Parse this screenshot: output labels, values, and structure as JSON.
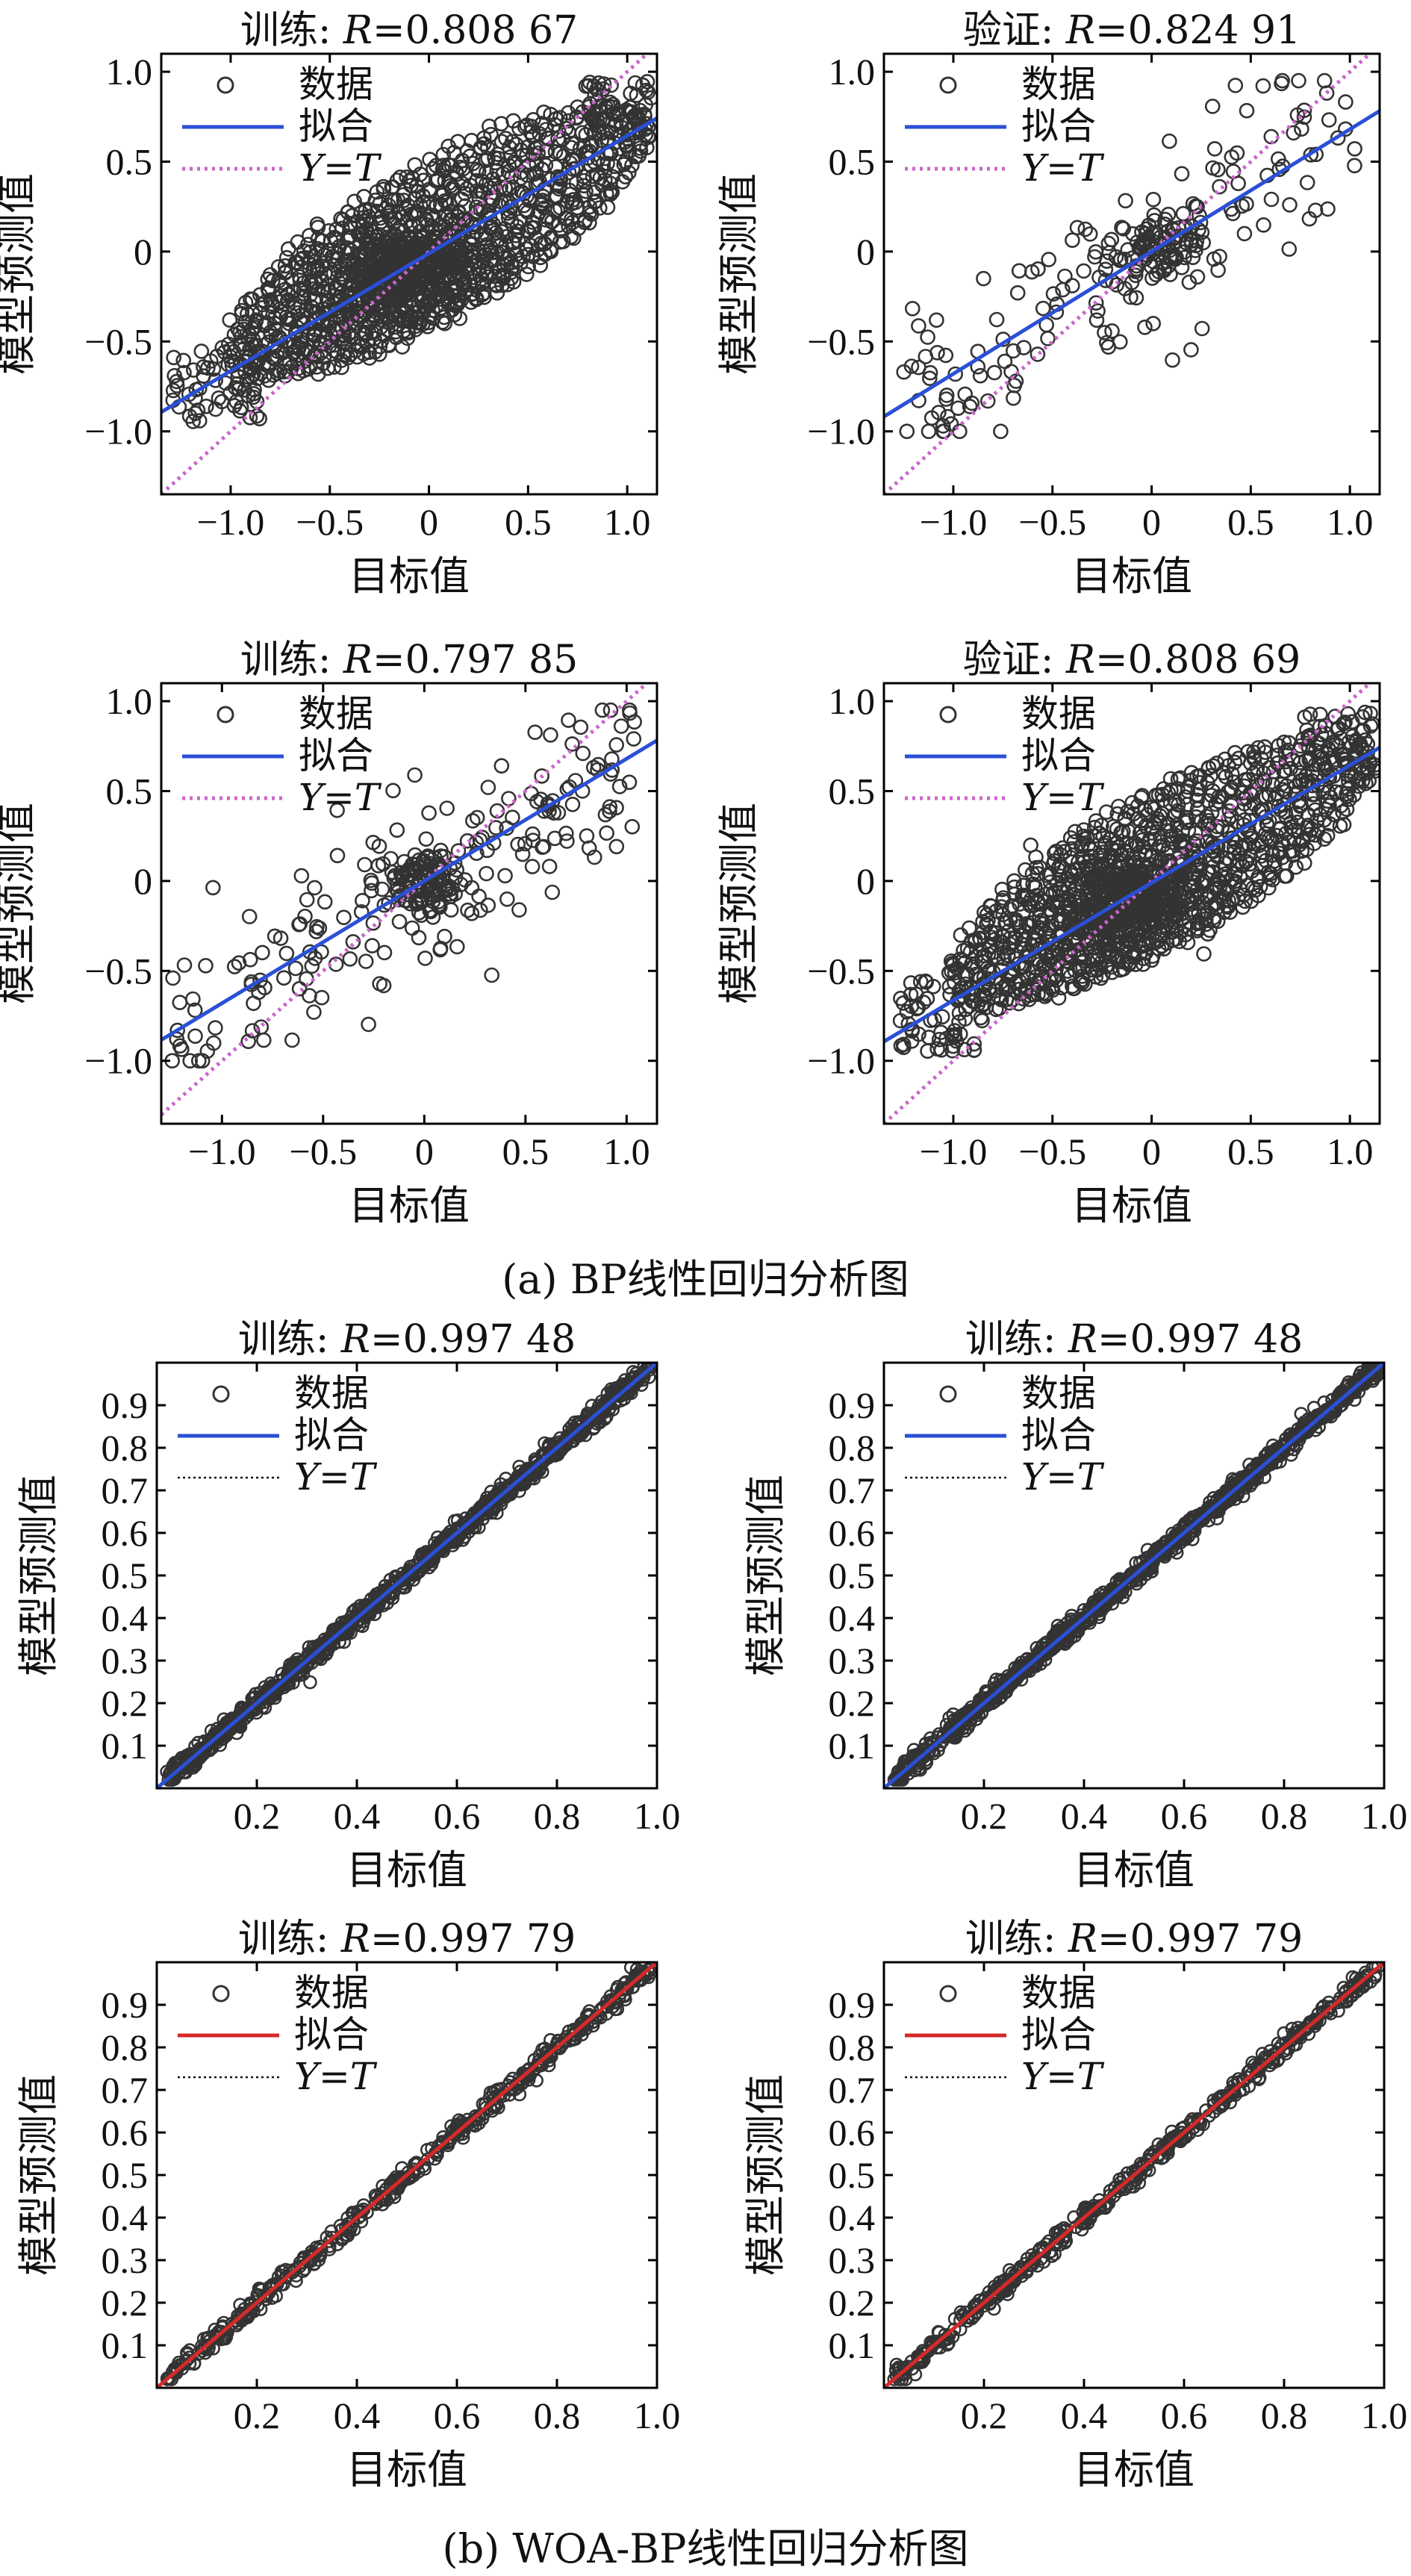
{
  "figure": {
    "caption_a": "(a) BP线性回归分析图",
    "caption_b": "(b) WOA-BP线性回归分析图"
  },
  "chart_data": [
    {
      "type": "scatter",
      "id": "a-train-1",
      "title": "训练: R=0.808 67",
      "title_prefix": "训练: ",
      "title_r": "R",
      "title_value": "=0.808 67",
      "xlabel": "目标值",
      "ylabel": "模型预测值",
      "xlim": [
        -1.35,
        1.15
      ],
      "ylim": [
        -1.35,
        1.1
      ],
      "xticks": [
        -1.0,
        -0.5,
        0,
        0.5,
        1.0
      ],
      "xtick_labels": [
        "−1.0",
        "−0.5",
        "0",
        "0.5",
        "1.0"
      ],
      "yticks": [
        1.0,
        0.5,
        0,
        -0.5,
        -1.0
      ],
      "ytick_labels": [
        "1.0",
        "0.5",
        "0",
        "−0.5",
        "−1.0"
      ],
      "legend": [
        "数据",
        "拟合",
        "Y=T"
      ],
      "legend_position": "top-left",
      "fit_color": "#2b4fd6",
      "identity_color": "#cc66cc",
      "identity_style": "dotted",
      "fit_line": {
        "slope": 0.654,
        "intercept": -0.01
      },
      "data_pattern": "dense-ellipse-rings",
      "approx_points": 1000
    },
    {
      "type": "scatter",
      "id": "a-valid-1",
      "title": "验证: R=0.824 91",
      "title_prefix": "验证: ",
      "title_r": "R",
      "title_value": "=0.824 91",
      "xlabel": "目标值",
      "ylabel": "模型预测值",
      "xlim": [
        -1.35,
        1.15
      ],
      "ylim": [
        -1.35,
        1.1
      ],
      "xticks": [
        -1.0,
        -0.5,
        0,
        0.5,
        1.0
      ],
      "xtick_labels": [
        "−1.0",
        "−0.5",
        "0",
        "0.5",
        "1.0"
      ],
      "yticks": [
        1.0,
        0.5,
        0,
        -0.5,
        -1.0
      ],
      "ytick_labels": [
        "1.0",
        "0.5",
        "0",
        "−0.5",
        "−1.0"
      ],
      "legend": [
        "数据",
        "拟合",
        "Y=T"
      ],
      "legend_position": "top-left",
      "fit_color": "#2b4fd6",
      "identity_color": "#cc66cc",
      "identity_style": "dotted",
      "fit_line": {
        "slope": 0.68,
        "intercept": 0.0
      },
      "data_pattern": "sparse-scatter",
      "approx_points": 250
    },
    {
      "type": "scatter",
      "id": "a-train-2",
      "title": "训练: R=0.797 85",
      "title_prefix": "训练: ",
      "title_r": "R",
      "title_value": "=0.797 85",
      "xlabel": "目标值",
      "ylabel": "模型预测值",
      "xlim": [
        -1.3,
        1.15
      ],
      "ylim": [
        -1.35,
        1.1
      ],
      "xticks": [
        -1.0,
        -0.5,
        0,
        0.5,
        1.0
      ],
      "xtick_labels": [
        "−1.0",
        "−0.5",
        "0",
        "0.5",
        "1.0"
      ],
      "yticks": [
        1.0,
        0.5,
        0,
        -0.5,
        -1.0
      ],
      "ytick_labels": [
        "1.0",
        "0.5",
        "0",
        "−0.5",
        "−1.0"
      ],
      "legend": [
        "数据",
        "拟合",
        "Y=T"
      ],
      "legend_position": "top-left",
      "fit_color": "#2b4fd6",
      "identity_color": "#cc66cc",
      "identity_style": "dotted",
      "fit_line": {
        "slope": 0.68,
        "intercept": 0.0
      },
      "data_pattern": "sparse-scatter",
      "approx_points": 300
    },
    {
      "type": "scatter",
      "id": "a-valid-2",
      "title": "验证: R=0.808 69",
      "title_prefix": "验证: ",
      "title_r": "R",
      "title_value": "=0.808 69",
      "xlabel": "目标值",
      "ylabel": "模型预测值",
      "xlim": [
        -1.35,
        1.15
      ],
      "ylim": [
        -1.35,
        1.1
      ],
      "xticks": [
        -1.0,
        -0.5,
        0,
        0.5,
        1.0
      ],
      "xtick_labels": [
        "−1.0",
        "−0.5",
        "0",
        "0.5",
        "1.0"
      ],
      "yticks": [
        1.0,
        0.5,
        0,
        -0.5,
        -1.0
      ],
      "ytick_labels": [
        "1.0",
        "0.5",
        "0",
        "−0.5",
        "−1.0"
      ],
      "legend": [
        "数据",
        "拟合",
        "Y=T"
      ],
      "legend_position": "top-left",
      "fit_color": "#2b4fd6",
      "identity_color": "#cc66cc",
      "identity_style": "dotted",
      "fit_line": {
        "slope": 0.654,
        "intercept": -0.01
      },
      "data_pattern": "dense-ellipse-rings",
      "approx_points": 1100
    },
    {
      "type": "scatter",
      "id": "b-train-1",
      "title": "训练: R=0.997 48",
      "title_prefix": "训练: ",
      "title_r": "R",
      "title_value": "=0.997 48",
      "xlabel": "目标值",
      "ylabel": "模型预测值",
      "xlim": [
        0,
        1.0
      ],
      "ylim": [
        0,
        1.0
      ],
      "xticks": [
        0.2,
        0.4,
        0.6,
        0.8,
        1.0
      ],
      "xtick_labels": [
        "0.2",
        "0.4",
        "0.6",
        "0.8",
        "1.0"
      ],
      "yticks": [
        0.9,
        0.8,
        0.7,
        0.6,
        0.5,
        0.4,
        0.3,
        0.2,
        0.1
      ],
      "ytick_labels": [
        "0.9",
        "0.8",
        "0.7",
        "0.6",
        "0.5",
        "0.4",
        "0.3",
        "0.2",
        "0.1"
      ],
      "legend": [
        "数据",
        "拟合",
        "Y=T"
      ],
      "legend_position": "top-left",
      "fit_color": "#2b4fd6",
      "identity_color": "#111111",
      "identity_style": "dotted",
      "fit_line": {
        "slope": 1.0,
        "intercept": 0.0
      },
      "data_pattern": "tight-diagonal",
      "approx_points": 900
    },
    {
      "type": "scatter",
      "id": "b-train-2",
      "title": "训练: R=0.997 48",
      "title_prefix": "训练: ",
      "title_r": "R",
      "title_value": "=0.997 48",
      "xlabel": "目标值",
      "ylabel": "模型预测值",
      "xlim": [
        0,
        1.0
      ],
      "ylim": [
        0,
        1.0
      ],
      "xticks": [
        0.2,
        0.4,
        0.6,
        0.8,
        1.0
      ],
      "xtick_labels": [
        "0.2",
        "0.4",
        "0.6",
        "0.8",
        "1.0"
      ],
      "yticks": [
        0.9,
        0.8,
        0.7,
        0.6,
        0.5,
        0.4,
        0.3,
        0.2,
        0.1
      ],
      "ytick_labels": [
        "0.9",
        "0.8",
        "0.7",
        "0.6",
        "0.5",
        "0.4",
        "0.3",
        "0.2",
        "0.1"
      ],
      "legend": [
        "数据",
        "拟合",
        "Y=T"
      ],
      "legend_position": "top-left",
      "fit_color": "#2b4fd6",
      "identity_color": "#111111",
      "identity_style": "dotted",
      "fit_line": {
        "slope": 1.0,
        "intercept": 0.0
      },
      "data_pattern": "tight-diagonal",
      "approx_points": 900
    },
    {
      "type": "scatter",
      "id": "b-train-3",
      "title": "训练: R=0.997 79",
      "title_prefix": "训练: ",
      "title_r": "R",
      "title_value": "=0.997 79",
      "xlabel": "目标值",
      "ylabel": "模型预测值",
      "xlim": [
        0,
        1.0
      ],
      "ylim": [
        0,
        1.0
      ],
      "xticks": [
        0.2,
        0.4,
        0.6,
        0.8,
        1.0
      ],
      "xtick_labels": [
        "0.2",
        "0.4",
        "0.6",
        "0.8",
        "1.0"
      ],
      "yticks": [
        0.9,
        0.8,
        0.7,
        0.6,
        0.5,
        0.4,
        0.3,
        0.2,
        0.1
      ],
      "ytick_labels": [
        "0.9",
        "0.8",
        "0.7",
        "0.6",
        "0.5",
        "0.4",
        "0.3",
        "0.2",
        "0.1"
      ],
      "legend": [
        "数据",
        "拟合",
        "Y=T"
      ],
      "legend_position": "top-left",
      "fit_color": "#d42a2a",
      "identity_color": "#111111",
      "identity_style": "dotted",
      "fit_line": {
        "slope": 1.0,
        "intercept": 0.0
      },
      "data_pattern": "tight-diagonal",
      "approx_points": 450
    },
    {
      "type": "scatter",
      "id": "b-train-4",
      "title": "训练: R=0.997 79",
      "title_prefix": "训练: ",
      "title_r": "R",
      "title_value": "=0.997 79",
      "xlabel": "目标值",
      "ylabel": "模型预测值",
      "xlim": [
        0,
        1.0
      ],
      "ylim": [
        0,
        1.0
      ],
      "xticks": [
        0.2,
        0.4,
        0.6,
        0.8,
        1.0
      ],
      "xtick_labels": [
        "0.2",
        "0.4",
        "0.6",
        "0.8",
        "1.0"
      ],
      "yticks": [
        0.9,
        0.8,
        0.7,
        0.6,
        0.5,
        0.4,
        0.3,
        0.2,
        0.1
      ],
      "ytick_labels": [
        "0.9",
        "0.8",
        "0.7",
        "0.6",
        "0.5",
        "0.4",
        "0.3",
        "0.2",
        "0.1"
      ],
      "legend": [
        "数据",
        "拟合",
        "Y=T"
      ],
      "legend_position": "top-left",
      "fit_color": "#d42a2a",
      "identity_color": "#111111",
      "identity_style": "dotted",
      "fit_line": {
        "slope": 1.0,
        "intercept": 0.0
      },
      "data_pattern": "tight-diagonal",
      "approx_points": 450
    }
  ]
}
